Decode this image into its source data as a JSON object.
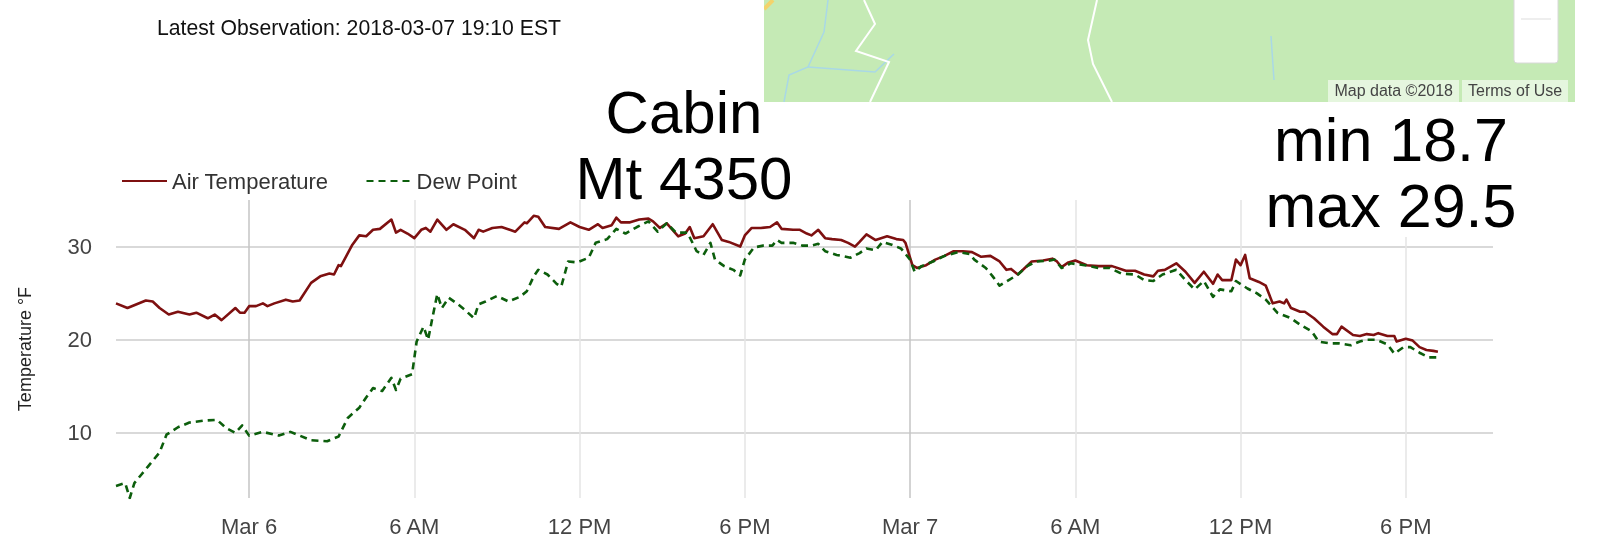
{
  "chart_data": {
    "type": "line",
    "title": "Cabin\nMt 4350",
    "ylabel": "Temperature °F",
    "annotations": [
      "Latest Observation: 2018-03-07 19:10 EST",
      "min 18.7\nmax 29.5",
      "Map data ©2018",
      "Terms of Use"
    ],
    "series": [
      {
        "name": "Air Temperature",
        "color": "#7e1010",
        "line_style": "solid",
        "x": [
          "2018-03-05T19:10",
          "2018-03-05T19:35",
          "2018-03-05T19:55",
          "2018-03-05T20:15",
          "2018-03-05T20:30",
          "2018-03-05T20:45",
          "2018-03-05T21:05",
          "2018-03-05T21:25",
          "2018-03-05T21:50",
          "2018-03-05T22:05",
          "2018-03-05T22:30",
          "2018-03-05T22:45",
          "2018-03-05T23:00",
          "2018-03-05T23:30",
          "2018-03-05T23:40",
          "2018-03-05T23:50",
          "2018-03-06T00:00",
          "2018-03-06T00:15",
          "2018-03-06T00:30",
          "2018-03-06T00:40",
          "2018-03-06T00:55",
          "2018-03-06T01:20",
          "2018-03-06T01:35",
          "2018-03-06T01:50",
          "2018-03-06T02:15",
          "2018-03-06T02:35",
          "2018-03-06T02:55",
          "2018-03-06T03:05",
          "2018-03-06T03:15",
          "2018-03-06T03:20",
          "2018-03-06T03:45",
          "2018-03-06T04:00",
          "2018-03-06T04:15",
          "2018-03-06T04:30",
          "2018-03-06T04:45",
          "2018-03-06T05:10",
          "2018-03-06T05:20",
          "2018-03-06T05:30",
          "2018-03-06T05:45",
          "2018-03-06T06:00",
          "2018-03-06T06:15",
          "2018-03-06T06:25",
          "2018-03-06T06:35",
          "2018-03-06T06:50",
          "2018-03-06T07:10",
          "2018-03-06T07:25",
          "2018-03-06T07:50",
          "2018-03-06T08:10",
          "2018-03-06T08:20",
          "2018-03-06T08:30",
          "2018-03-06T08:50",
          "2018-03-06T09:10",
          "2018-03-06T09:40",
          "2018-03-06T10:00",
          "2018-03-06T10:05",
          "2018-03-06T10:20",
          "2018-03-06T10:30",
          "2018-03-06T10:45",
          "2018-03-06T11:15",
          "2018-03-06T11:40",
          "2018-03-06T12:00",
          "2018-03-06T12:20",
          "2018-03-06T12:40",
          "2018-03-06T12:50",
          "2018-03-06T13:10",
          "2018-03-06T13:20",
          "2018-03-06T13:30",
          "2018-03-06T13:50",
          "2018-03-06T14:10",
          "2018-03-06T14:30",
          "2018-03-06T14:40",
          "2018-03-06T14:55",
          "2018-03-06T15:10",
          "2018-03-06T15:35",
          "2018-03-06T15:50",
          "2018-03-06T16:00",
          "2018-03-06T16:10",
          "2018-03-06T16:30",
          "2018-03-06T16:50",
          "2018-03-06T17:10",
          "2018-03-06T17:25",
          "2018-03-06T17:50",
          "2018-03-06T18:00",
          "2018-03-06T18:15",
          "2018-03-06T18:35",
          "2018-03-06T18:55",
          "2018-03-06T19:10",
          "2018-03-06T19:20",
          "2018-03-06T19:45",
          "2018-03-06T20:00",
          "2018-03-06T20:15",
          "2018-03-06T20:25",
          "2018-03-06T20:40",
          "2018-03-06T20:55",
          "2018-03-06T21:10",
          "2018-03-06T21:30",
          "2018-03-06T21:45",
          "2018-03-06T22:00",
          "2018-03-06T22:10",
          "2018-03-06T22:25",
          "2018-03-06T22:45",
          "2018-03-06T23:10",
          "2018-03-06T23:30",
          "2018-03-06T23:45",
          "2018-03-06T23:50",
          "2018-03-07T00:05",
          "2018-03-07T00:15",
          "2018-03-07T00:35",
          "2018-03-07T00:55",
          "2018-03-07T01:15",
          "2018-03-07T01:35",
          "2018-03-07T01:55",
          "2018-03-07T02:15",
          "2018-03-07T02:35",
          "2018-03-07T02:55",
          "2018-03-07T03:15",
          "2018-03-07T03:30",
          "2018-03-07T03:40",
          "2018-03-07T03:55",
          "2018-03-07T04:10",
          "2018-03-07T04:25",
          "2018-03-07T04:50",
          "2018-03-07T05:10",
          "2018-03-07T05:20",
          "2018-03-07T05:30",
          "2018-03-07T05:45",
          "2018-03-07T06:00",
          "2018-03-07T06:25",
          "2018-03-07T06:50",
          "2018-03-07T07:20",
          "2018-03-07T07:50",
          "2018-03-07T08:10",
          "2018-03-07T08:30",
          "2018-03-07T08:50",
          "2018-03-07T09:00",
          "2018-03-07T09:15",
          "2018-03-07T09:40",
          "2018-03-07T10:00",
          "2018-03-07T10:20",
          "2018-03-07T10:40",
          "2018-03-07T11:00",
          "2018-03-07T11:10",
          "2018-03-07T11:20",
          "2018-03-07T11:40",
          "2018-03-07T11:50",
          "2018-03-07T12:00",
          "2018-03-07T12:10",
          "2018-03-07T12:20",
          "2018-03-07T12:40",
          "2018-03-07T12:55",
          "2018-03-07T13:10",
          "2018-03-07T13:25",
          "2018-03-07T13:35",
          "2018-03-07T13:40",
          "2018-03-07T13:50",
          "2018-03-07T14:10",
          "2018-03-07T14:20",
          "2018-03-07T14:40",
          "2018-03-07T15:00",
          "2018-03-07T15:20",
          "2018-03-07T15:30",
          "2018-03-07T15:40",
          "2018-03-07T16:05",
          "2018-03-07T16:20",
          "2018-03-07T16:35",
          "2018-03-07T16:50",
          "2018-03-07T17:00",
          "2018-03-07T17:20",
          "2018-03-07T17:35",
          "2018-03-07T17:40",
          "2018-03-07T18:00",
          "2018-03-07T18:15",
          "2018-03-07T18:30",
          "2018-03-07T18:45",
          "2018-03-07T19:00",
          "2018-03-07T19:10"
        ],
        "values": [
          23.9,
          23.4,
          23.8,
          24.2,
          24.1,
          23.4,
          22.7,
          23.0,
          22.7,
          22.9,
          22.3,
          22.7,
          22.1,
          23.4,
          22.9,
          22.9,
          23.6,
          23.6,
          23.9,
          23.6,
          23.9,
          24.3,
          24.1,
          24.2,
          26.1,
          26.8,
          27.1,
          27.0,
          28.0,
          27.9,
          30.2,
          31.2,
          31.1,
          31.8,
          31.9,
          32.9,
          31.5,
          31.8,
          31.4,
          30.9,
          31.8,
          32.0,
          31.6,
          32.9,
          31.8,
          32.4,
          31.8,
          30.9,
          31.8,
          31.6,
          32.0,
          32.1,
          31.6,
          32.6,
          32.5,
          33.3,
          33.2,
          32.1,
          31.9,
          32.6,
          32.1,
          31.8,
          32.4,
          32.0,
          32.3,
          33.1,
          32.6,
          32.6,
          32.9,
          33.0,
          32.7,
          32.0,
          32.5,
          31.1,
          31.4,
          32.1,
          30.9,
          31.1,
          32.4,
          30.7,
          30.5,
          30.0,
          31.2,
          32.0,
          32.0,
          32.1,
          32.6,
          31.9,
          31.8,
          31.8,
          31.4,
          31.2,
          31.8,
          30.9,
          30.8,
          30.7,
          30.4,
          30.0,
          30.5,
          31.3,
          30.7,
          31.1,
          30.8,
          30.7,
          30.4,
          28.0,
          27.7,
          28.0,
          28.6,
          29.0,
          29.5,
          29.5,
          29.4,
          28.9,
          29.0,
          28.4,
          27.5,
          27.6,
          27.0,
          27.7,
          28.4,
          28.5,
          28.7,
          28.4,
          27.8,
          28.3,
          28.5,
          28.0,
          27.9,
          27.9,
          27.4,
          27.4,
          27.0,
          26.8,
          27.4,
          27.5,
          28.2,
          27.3,
          26.1,
          27.3,
          26.0,
          27.0,
          26.4,
          26.4,
          28.6,
          28.0,
          29.1,
          26.6,
          26.2,
          25.8,
          23.9,
          24.1,
          23.9,
          24.3,
          23.4,
          23.0,
          23.0,
          22.3,
          21.4,
          20.6,
          20.6,
          21.4,
          20.5,
          20.4,
          20.6,
          20.5,
          20.7,
          20.4,
          20.4,
          19.8,
          20.1,
          19.9,
          19.2,
          18.9,
          18.8,
          18.7
        ]
      },
      {
        "name": "Dew Point",
        "color": "#0c5e0c",
        "line_style": "dashed",
        "x": [
          "2018-03-05T19:10",
          "2018-03-05T19:30",
          "2018-03-05T19:40",
          "2018-03-05T19:50",
          "2018-03-05T20:05",
          "2018-03-05T20:20",
          "2018-03-05T20:45",
          "2018-03-05T21:00",
          "2018-03-05T21:25",
          "2018-03-05T21:50",
          "2018-03-05T22:20",
          "2018-03-05T22:50",
          "2018-03-05T23:10",
          "2018-03-05T23:30",
          "2018-03-05T23:45",
          "2018-03-06T00:00",
          "2018-03-06T00:30",
          "2018-03-06T01:05",
          "2018-03-06T01:30",
          "2018-03-06T01:50",
          "2018-03-06T02:15",
          "2018-03-06T02:50",
          "2018-03-06T03:15",
          "2018-03-06T03:35",
          "2018-03-06T04:00",
          "2018-03-06T04:15",
          "2018-03-06T04:30",
          "2018-03-06T04:50",
          "2018-03-06T05:10",
          "2018-03-06T05:20",
          "2018-03-06T05:30",
          "2018-03-06T05:55",
          "2018-03-06T06:05",
          "2018-03-06T06:20",
          "2018-03-06T06:30",
          "2018-03-06T06:40",
          "2018-03-06T06:50",
          "2018-03-06T07:00",
          "2018-03-06T07:15",
          "2018-03-06T07:35",
          "2018-03-06T07:50",
          "2018-03-06T08:10",
          "2018-03-06T08:20",
          "2018-03-06T08:35",
          "2018-03-06T09:00",
          "2018-03-06T09:25",
          "2018-03-06T09:50",
          "2018-03-06T10:05",
          "2018-03-06T10:20",
          "2018-03-06T10:30",
          "2018-03-06T10:50",
          "2018-03-06T11:10",
          "2018-03-06T11:20",
          "2018-03-06T11:35",
          "2018-03-06T11:55",
          "2018-03-06T12:20",
          "2018-03-06T12:35",
          "2018-03-06T13:00",
          "2018-03-06T13:20",
          "2018-03-06T13:40",
          "2018-03-06T14:05",
          "2018-03-06T14:30",
          "2018-03-06T14:50",
          "2018-03-06T15:10",
          "2018-03-06T15:30",
          "2018-03-06T15:55",
          "2018-03-06T16:15",
          "2018-03-06T16:30",
          "2018-03-06T16:45",
          "2018-03-06T16:55",
          "2018-03-06T17:15",
          "2018-03-06T17:35",
          "2018-03-06T17:50",
          "2018-03-06T18:00",
          "2018-03-06T18:20",
          "2018-03-06T18:40",
          "2018-03-06T19:00",
          "2018-03-06T19:10",
          "2018-03-06T19:20",
          "2018-03-06T19:45",
          "2018-03-06T20:05",
          "2018-03-06T20:25",
          "2018-03-06T20:40",
          "2018-03-06T20:55",
          "2018-03-06T21:20",
          "2018-03-06T21:50",
          "2018-03-06T22:10",
          "2018-03-06T22:25",
          "2018-03-06T22:45",
          "2018-03-06T23:00",
          "2018-03-06T23:20",
          "2018-03-06T23:40",
          "2018-03-07T00:00",
          "2018-03-07T00:10",
          "2018-03-07T00:25",
          "2018-03-07T00:50",
          "2018-03-07T01:15",
          "2018-03-07T01:45",
          "2018-03-07T02:10",
          "2018-03-07T02:20",
          "2018-03-07T02:45",
          "2018-03-07T03:00",
          "2018-03-07T03:15",
          "2018-03-07T03:35",
          "2018-03-07T03:55",
          "2018-03-07T04:15",
          "2018-03-07T04:35",
          "2018-03-07T05:05",
          "2018-03-07T05:15",
          "2018-03-07T05:30",
          "2018-03-07T05:50",
          "2018-03-07T06:20",
          "2018-03-07T06:50",
          "2018-03-07T07:15",
          "2018-03-07T07:40",
          "2018-03-07T08:10",
          "2018-03-07T08:30",
          "2018-03-07T08:50",
          "2018-03-07T09:10",
          "2018-03-07T09:40",
          "2018-03-07T10:00",
          "2018-03-07T10:20",
          "2018-03-07T10:40",
          "2018-03-07T11:00",
          "2018-03-07T11:15",
          "2018-03-07T11:40",
          "2018-03-07T11:50",
          "2018-03-07T12:15",
          "2018-03-07T12:35",
          "2018-03-07T12:55",
          "2018-03-07T13:20",
          "2018-03-07T13:50",
          "2018-03-07T14:10",
          "2018-03-07T14:35",
          "2018-03-07T14:50",
          "2018-03-07T15:15",
          "2018-03-07T15:35",
          "2018-03-07T16:00",
          "2018-03-07T16:20",
          "2018-03-07T16:35",
          "2018-03-07T16:55",
          "2018-03-07T17:20",
          "2018-03-07T17:35",
          "2018-03-07T17:55",
          "2018-03-07T18:10",
          "2018-03-07T18:30",
          "2018-03-07T18:50",
          "2018-03-07T19:10"
        ],
        "values": [
          4.3,
          4.6,
          3.0,
          4.6,
          5.5,
          6.4,
          7.9,
          9.8,
          10.6,
          11.1,
          11.3,
          11.4,
          10.5,
          10.0,
          10.8,
          9.7,
          10.1,
          9.7,
          10.1,
          9.7,
          9.2,
          9.1,
          9.6,
          11.6,
          12.7,
          13.8,
          14.8,
          14.5,
          15.9,
          14.6,
          15.8,
          16.3,
          19.8,
          21.4,
          20.0,
          22.5,
          24.9,
          23.4,
          24.5,
          23.8,
          23.2,
          22.3,
          23.8,
          24.1,
          24.7,
          24.1,
          24.6,
          25.2,
          26.8,
          27.5,
          27.0,
          26.0,
          25.7,
          28.4,
          28.3,
          28.8,
          30.4,
          30.8,
          31.9,
          31.4,
          32.1,
          32.7,
          31.6,
          32.5,
          31.5,
          31.5,
          29.5,
          29.1,
          30.4,
          28.6,
          27.9,
          27.5,
          26.9,
          28.6,
          29.9,
          30.1,
          30.1,
          30.7,
          30.4,
          30.4,
          30.1,
          30.1,
          30.3,
          29.5,
          29.1,
          28.8,
          29.3,
          29.8,
          29.6,
          30.5,
          30.2,
          29.8,
          28.6,
          27.3,
          27.9,
          28.4,
          29.0,
          29.4,
          29.2,
          28.6,
          27.7,
          26.8,
          25.8,
          26.4,
          27.0,
          27.9,
          28.4,
          28.5,
          28.6,
          27.7,
          28.2,
          28.0,
          27.7,
          27.7,
          27.1,
          27.0,
          26.4,
          26.3,
          27.0,
          27.5,
          26.4,
          25.4,
          26.3,
          24.6,
          25.4,
          25.2,
          26.3,
          25.5,
          25.0,
          24.3,
          22.9,
          22.3,
          21.6,
          20.9,
          19.8,
          19.6,
          19.6,
          19.4,
          19.8,
          20.0,
          20.0,
          19.5,
          18.5,
          19.2,
          19.2,
          18.6,
          18.1,
          18.1
        ]
      }
    ],
    "xlim": [
      "2018-03-05T19:10",
      "2018-03-07T21:10"
    ],
    "xticks": [
      {
        "value": "2018-03-06T00:00",
        "label": "Mar 6"
      },
      {
        "value": "2018-03-06T06:00",
        "label": "6 AM"
      },
      {
        "value": "2018-03-06T12:00",
        "label": "12 PM"
      },
      {
        "value": "2018-03-06T18:00",
        "label": "6 PM"
      },
      {
        "value": "2018-03-07T00:00",
        "label": "Mar 7"
      },
      {
        "value": "2018-03-07T06:00",
        "label": "6 AM"
      },
      {
        "value": "2018-03-07T12:00",
        "label": "12 PM"
      },
      {
        "value": "2018-03-07T18:00",
        "label": "6 PM"
      }
    ],
    "ylim": [
      3,
      35
    ],
    "yticks": [
      10,
      20,
      30
    ],
    "grid": true,
    "legend": "top left",
    "marker": "none"
  }
}
